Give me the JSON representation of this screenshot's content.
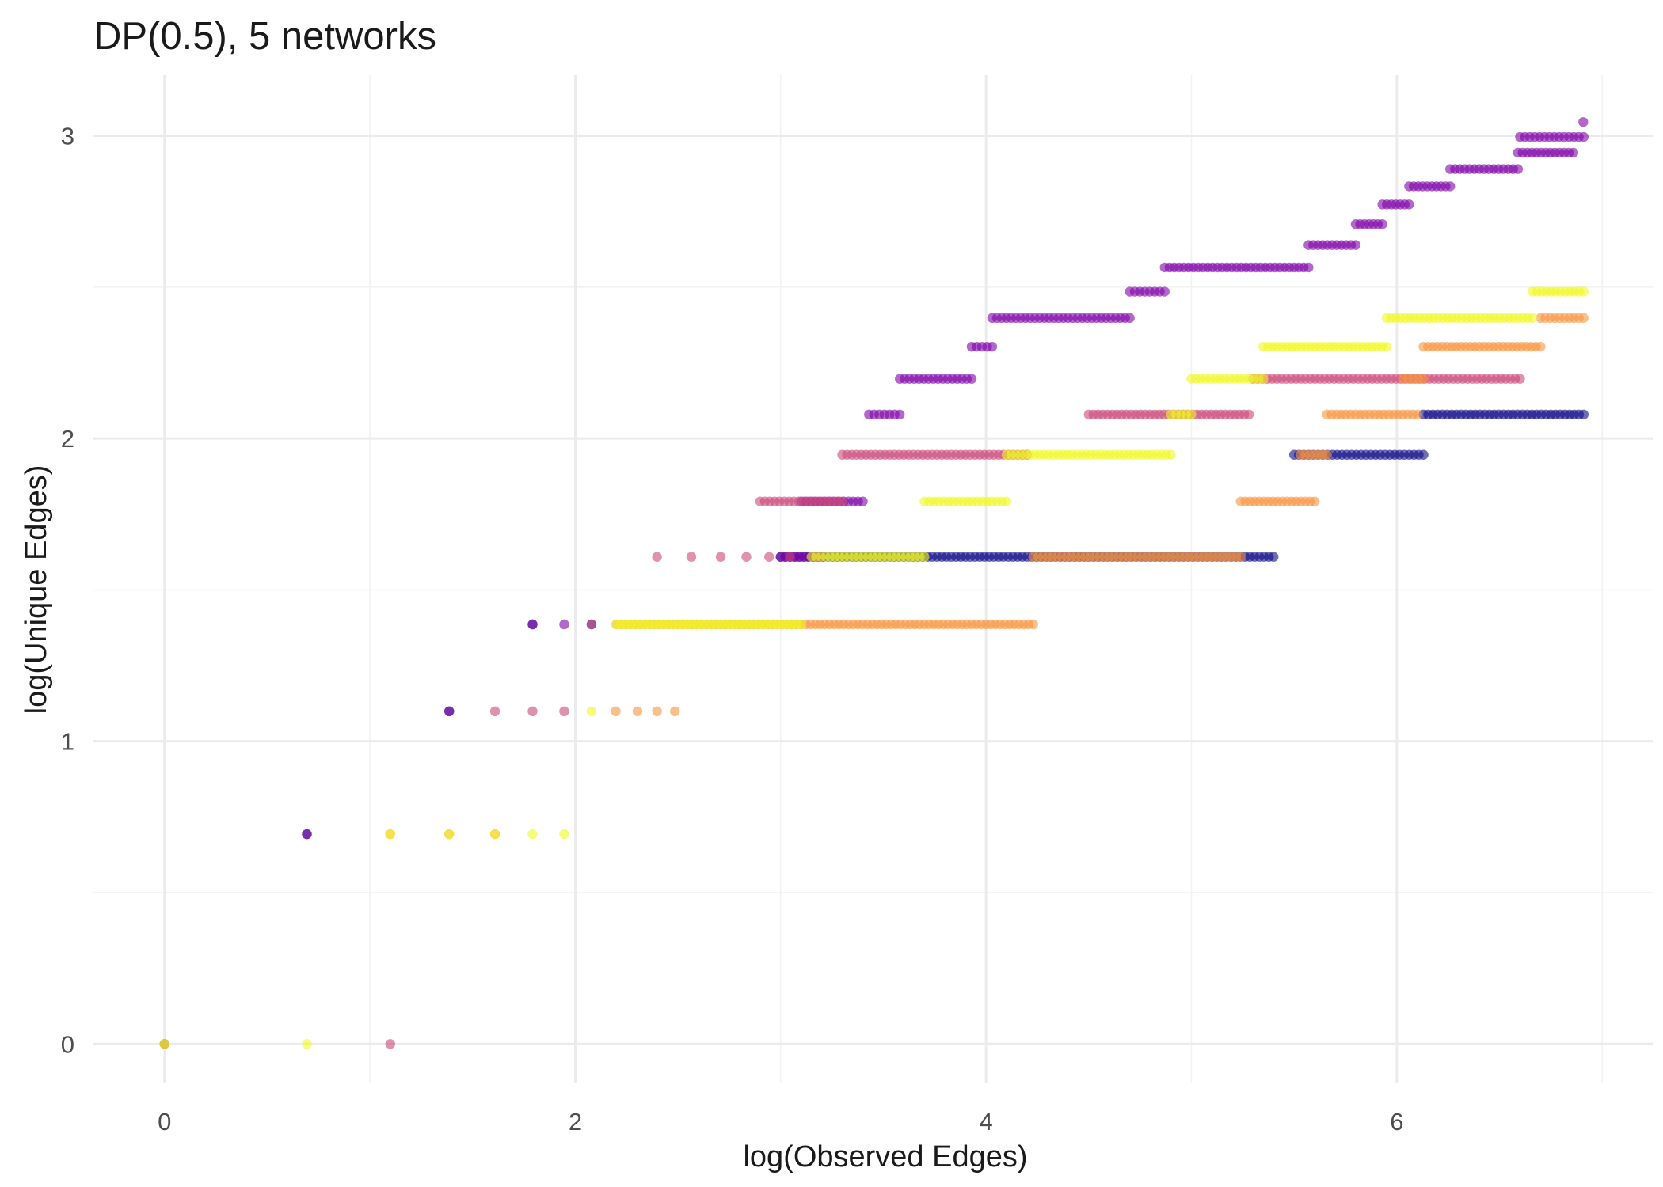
{
  "chart_data": {
    "type": "scatter",
    "title": "DP(0.5), 5 networks",
    "xlabel": "log(Observed Edges)",
    "ylabel": "log(Unique Edges)",
    "xlim": [
      -0.35,
      7.25
    ],
    "ylim": [
      -0.13,
      3.2
    ],
    "x_ticks": [
      0,
      2,
      4,
      6
    ],
    "x_tick_labels": [
      "0",
      "2",
      "4",
      "6"
    ],
    "y_ticks": [
      0,
      1,
      2,
      3
    ],
    "y_tick_labels": [
      "0",
      "1",
      "2",
      "3"
    ],
    "grid": true,
    "legend": "none",
    "colors": [
      "#0d0887",
      "#7e03a8",
      "#cc4778",
      "#f89540",
      "#f0f921"
    ],
    "series": [
      {
        "color": "#0d0887",
        "points": [
          [
            0,
            0
          ],
          [
            0.693,
            0.693
          ],
          [
            1.386,
            1.099
          ],
          [
            1.792,
            1.386
          ],
          [
            2.079,
            1.386
          ]
        ],
        "runs": [
          {
            "y": 1.609,
            "x0": 3.0,
            "x1": 5.4
          },
          {
            "y": 1.946,
            "x0": 5.5,
            "x1": 6.13
          },
          {
            "y": 2.079,
            "x0": 6.13,
            "x1": 6.91
          }
        ]
      },
      {
        "color": "#7e03a8",
        "points": [
          [
            0.693,
            0.693
          ],
          [
            1.386,
            1.099
          ],
          [
            1.792,
            1.386
          ],
          [
            1.946,
            1.386
          ],
          [
            6.908,
            3.045
          ]
        ],
        "runs": [
          {
            "y": 1.609,
            "x0": 3.0,
            "x1": 3.2
          },
          {
            "y": 1.792,
            "x0": 3.1,
            "x1": 3.4
          },
          {
            "y": 2.079,
            "x0": 3.43,
            "x1": 3.58
          },
          {
            "y": 2.197,
            "x0": 3.58,
            "x1": 3.93
          },
          {
            "y": 2.303,
            "x0": 3.93,
            "x1": 4.03
          },
          {
            "y": 2.398,
            "x0": 4.03,
            "x1": 4.7
          },
          {
            "y": 2.485,
            "x0": 4.7,
            "x1": 4.87
          },
          {
            "y": 2.565,
            "x0": 4.87,
            "x1": 5.57
          },
          {
            "y": 2.639,
            "x0": 5.57,
            "x1": 5.8
          },
          {
            "y": 2.708,
            "x0": 5.8,
            "x1": 5.93
          },
          {
            "y": 2.773,
            "x0": 5.93,
            "x1": 6.06
          },
          {
            "y": 2.833,
            "x0": 6.06,
            "x1": 6.26
          },
          {
            "y": 2.89,
            "x0": 6.26,
            "x1": 6.59
          },
          {
            "y": 2.944,
            "x0": 6.59,
            "x1": 6.86
          },
          {
            "y": 2.996,
            "x0": 6.6,
            "x1": 6.91
          }
        ]
      },
      {
        "color": "#cc4778",
        "points": [
          [
            1.099,
            0
          ],
          [
            1.609,
            1.099
          ],
          [
            1.792,
            1.099
          ],
          [
            1.946,
            1.099
          ],
          [
            2.079,
            1.386
          ],
          [
            2.398,
            1.609
          ],
          [
            2.565,
            1.609
          ],
          [
            2.708,
            1.609
          ],
          [
            2.833,
            1.609
          ],
          [
            2.944,
            1.609
          ],
          [
            3.045,
            1.609
          ]
        ],
        "runs": [
          {
            "y": 1.792,
            "x0": 2.9,
            "x1": 3.3
          },
          {
            "y": 1.946,
            "x0": 3.3,
            "x1": 4.2
          },
          {
            "y": 2.079,
            "x0": 4.5,
            "x1": 5.28
          },
          {
            "y": 2.197,
            "x0": 5.3,
            "x1": 6.6
          }
        ]
      },
      {
        "color": "#f89540",
        "points": [
          [
            0,
            0
          ],
          [
            1.099,
            0.693
          ],
          [
            1.386,
            0.693
          ],
          [
            1.609,
            0.693
          ],
          [
            2.197,
            1.099
          ],
          [
            2.303,
            1.099
          ],
          [
            2.398,
            1.099
          ],
          [
            2.485,
            1.099
          ]
        ],
        "runs": [
          {
            "y": 1.386,
            "x0": 2.2,
            "x1": 4.23
          },
          {
            "y": 1.609,
            "x0": 4.23,
            "x1": 5.24
          },
          {
            "y": 1.792,
            "x0": 5.24,
            "x1": 5.6
          },
          {
            "y": 1.946,
            "x0": 5.53,
            "x1": 5.66
          },
          {
            "y": 2.079,
            "x0": 5.66,
            "x1": 6.1
          },
          {
            "y": 2.197,
            "x0": 6.03,
            "x1": 6.13
          },
          {
            "y": 2.303,
            "x0": 6.13,
            "x1": 6.7
          },
          {
            "y": 2.398,
            "x0": 6.7,
            "x1": 6.91
          }
        ]
      },
      {
        "color": "#f0f921",
        "points": [
          [
            0,
            0
          ],
          [
            0.693,
            0
          ],
          [
            1.099,
            0.693
          ],
          [
            1.386,
            0.693
          ],
          [
            1.609,
            0.693
          ],
          [
            1.792,
            0.693
          ],
          [
            1.946,
            0.693
          ],
          [
            2.079,
            1.099
          ]
        ],
        "runs": [
          {
            "y": 1.386,
            "x0": 2.2,
            "x1": 3.1
          },
          {
            "y": 1.609,
            "x0": 3.15,
            "x1": 3.7
          },
          {
            "y": 1.792,
            "x0": 3.7,
            "x1": 4.1
          },
          {
            "y": 1.946,
            "x0": 4.1,
            "x1": 4.9
          },
          {
            "y": 2.079,
            "x0": 4.9,
            "x1": 5.0
          },
          {
            "y": 2.197,
            "x0": 5.0,
            "x1": 5.35
          },
          {
            "y": 2.303,
            "x0": 5.35,
            "x1": 5.95
          },
          {
            "y": 2.398,
            "x0": 5.95,
            "x1": 6.66
          },
          {
            "y": 2.485,
            "x0": 6.66,
            "x1": 6.91
          }
        ]
      }
    ]
  }
}
